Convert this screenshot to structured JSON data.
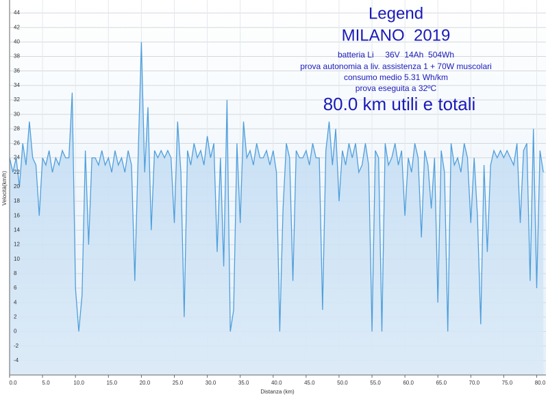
{
  "chart_data": {
    "type": "line",
    "x_label": "Distanza  (km)",
    "y_label": "Velocità(km/h)",
    "legend": {
      "title": "Legend",
      "heading": "MILANO  2019",
      "lines": [
        "batteria Li     36V  14Ah  504Wh",
        "prova autonomia a liv. assistenza 1 + 70W muscolari",
        "consumo medio 5.31 Wh/km",
        "prova eseguita a 32ºC"
      ],
      "summary": "80.0 km utili e totali"
    },
    "color": "#4f9edb",
    "grid": true,
    "xlim": [
      0,
      81.4
    ],
    "ylim": [
      -6,
      45.8
    ],
    "xticks": [
      {
        "value": 0,
        "label": "0.0"
      },
      {
        "value": 5,
        "label": "5.0"
      },
      {
        "value": 10,
        "label": "10.0"
      },
      {
        "value": 15,
        "label": "15.0"
      },
      {
        "value": 20,
        "label": "20.0"
      },
      {
        "value": 25,
        "label": "25.0"
      },
      {
        "value": 30,
        "label": "30.0"
      },
      {
        "value": 35,
        "label": "35.0"
      },
      {
        "value": 40,
        "label": "40.0"
      },
      {
        "value": 45,
        "label": "45.0"
      },
      {
        "value": 50,
        "label": "50.0"
      },
      {
        "value": 55,
        "label": "55.0"
      },
      {
        "value": 60,
        "label": "60.0"
      },
      {
        "value": 65,
        "label": "65.0"
      },
      {
        "value": 70,
        "label": "70.0"
      },
      {
        "value": 75,
        "label": "75.0"
      },
      {
        "value": 80,
        "label": "80.0"
      }
    ],
    "yticks": [
      -4,
      -2,
      0,
      2,
      4,
      6,
      8,
      10,
      12,
      14,
      16,
      18,
      20,
      22,
      24,
      26,
      28,
      30,
      32,
      34,
      36,
      38,
      40,
      42,
      44
    ],
    "x": [
      0,
      0.5,
      1,
      1.5,
      2,
      2.5,
      3,
      3.5,
      4,
      4.5,
      5,
      5.5,
      6,
      6.5,
      7,
      7.5,
      8,
      8.5,
      9,
      9.5,
      10,
      10.5,
      11,
      11.5,
      12,
      12.5,
      13,
      13.5,
      14,
      14.5,
      15,
      15.5,
      16,
      16.5,
      17,
      17.5,
      18,
      18.5,
      19,
      19.5,
      20,
      20.5,
      21,
      21.5,
      22,
      22.5,
      23,
      23.5,
      24,
      24.5,
      25,
      25.5,
      26,
      26.5,
      27,
      27.5,
      28,
      28.5,
      29,
      29.5,
      30,
      30.5,
      31,
      31.5,
      32,
      32.5,
      33,
      33.5,
      34,
      34.5,
      35,
      35.5,
      36,
      36.5,
      37,
      37.5,
      38,
      38.5,
      39,
      39.5,
      40,
      40.5,
      41,
      41.5,
      42,
      42.5,
      43,
      43.5,
      44,
      44.5,
      45,
      45.5,
      46,
      46.5,
      47,
      47.5,
      48,
      48.5,
      49,
      49.5,
      50,
      50.5,
      51,
      51.5,
      52,
      52.5,
      53,
      53.5,
      54,
      54.5,
      55,
      55.5,
      56,
      56.5,
      57,
      57.5,
      58,
      58.5,
      59,
      59.5,
      60,
      60.5,
      61,
      61.5,
      62,
      62.5,
      63,
      63.5,
      64,
      64.5,
      65,
      65.5,
      66,
      66.5,
      67,
      67.5,
      68,
      68.5,
      69,
      69.5,
      70,
      70.5,
      71,
      71.5,
      72,
      72.5,
      73,
      73.5,
      74,
      74.5,
      75,
      75.5,
      76,
      76.5,
      77,
      77.5,
      78,
      78.5,
      79,
      79.5,
      80,
      80.5,
      81
    ],
    "values": [
      24,
      22,
      24,
      20,
      26,
      23,
      29,
      24,
      23,
      16,
      24,
      23,
      25,
      22,
      24,
      23,
      25,
      24,
      24,
      33,
      6,
      0,
      5,
      25,
      12,
      24,
      24,
      23,
      25,
      23,
      24,
      22,
      25,
      23,
      24,
      22,
      25,
      23,
      7,
      24,
      40,
      22,
      31,
      14,
      25,
      24,
      25,
      24,
      25,
      24,
      15,
      29,
      22,
      2,
      25,
      23,
      26,
      24,
      25,
      23,
      27,
      24,
      26,
      11,
      24,
      9,
      32,
      0,
      3,
      26,
      15,
      29,
      24,
      25,
      23,
      26,
      24,
      24,
      25,
      23,
      25,
      22,
      0,
      17,
      26,
      24,
      7,
      25,
      24,
      24,
      25,
      23,
      26,
      24,
      24,
      3,
      25,
      29,
      23,
      28,
      18,
      25,
      23,
      26,
      24,
      26,
      22,
      23,
      26,
      23,
      0,
      25,
      24,
      0,
      26,
      23,
      24,
      26,
      23,
      25,
      16,
      24,
      22,
      26,
      24,
      13,
      25,
      23,
      17,
      24,
      4,
      25,
      22,
      0,
      26,
      23,
      24,
      22,
      26,
      24,
      15,
      24,
      16,
      1,
      23,
      11,
      23,
      25,
      24,
      25,
      24,
      25,
      24,
      23,
      26,
      15,
      25,
      26,
      7,
      28,
      6,
      25,
      22
    ]
  }
}
